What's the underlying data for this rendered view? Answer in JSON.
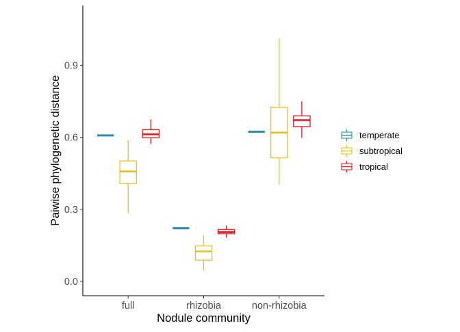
{
  "chart_data": {
    "type": "box",
    "xlabel": "Nodule community",
    "ylabel": "Paiwise phylogenetic distance",
    "categories": [
      "full",
      "rhizobia",
      "non-rhizobia"
    ],
    "ylim": [
      -0.06,
      1.15
    ],
    "yticks": [
      0.0,
      0.3,
      0.6,
      0.9
    ],
    "ytick_labels": [
      "0.0",
      "0.3",
      "0.6",
      "0.9"
    ],
    "grid": false,
    "legend": {
      "position": "right",
      "items": [
        "temperate",
        "subtropical",
        "tropical"
      ]
    },
    "series": [
      {
        "name": "temperate",
        "color": "#2b8cab",
        "boxes": [
          {
            "category": "full",
            "min": 0.608,
            "q1": 0.608,
            "median": 0.608,
            "q3": 0.608,
            "max": 0.608
          },
          {
            "category": "rhizobia",
            "min": 0.221,
            "q1": 0.221,
            "median": 0.221,
            "q3": 0.221,
            "max": 0.221
          },
          {
            "category": "non-rhizobia",
            "min": 0.624,
            "q1": 0.624,
            "median": 0.624,
            "q3": 0.624,
            "max": 0.624
          }
        ]
      },
      {
        "name": "subtropical",
        "color": "#e8c21d",
        "boxes": [
          {
            "category": "full",
            "min": 0.285,
            "q1": 0.408,
            "median": 0.458,
            "q3": 0.502,
            "max": 0.588
          },
          {
            "category": "rhizobia",
            "min": 0.045,
            "q1": 0.088,
            "median": 0.125,
            "q3": 0.148,
            "max": 0.192
          },
          {
            "category": "non-rhizobia",
            "min": 0.403,
            "q1": 0.515,
            "median": 0.62,
            "q3": 0.726,
            "max": 1.013
          }
        ]
      },
      {
        "name": "tropical",
        "color": "#e41a1c",
        "boxes": [
          {
            "category": "full",
            "min": 0.572,
            "q1": 0.599,
            "median": 0.613,
            "q3": 0.632,
            "max": 0.675
          },
          {
            "category": "rhizobia",
            "min": 0.182,
            "q1": 0.198,
            "median": 0.206,
            "q3": 0.216,
            "max": 0.232
          },
          {
            "category": "non-rhizobia",
            "min": 0.598,
            "q1": 0.645,
            "median": 0.672,
            "q3": 0.69,
            "max": 0.75
          }
        ]
      }
    ]
  }
}
